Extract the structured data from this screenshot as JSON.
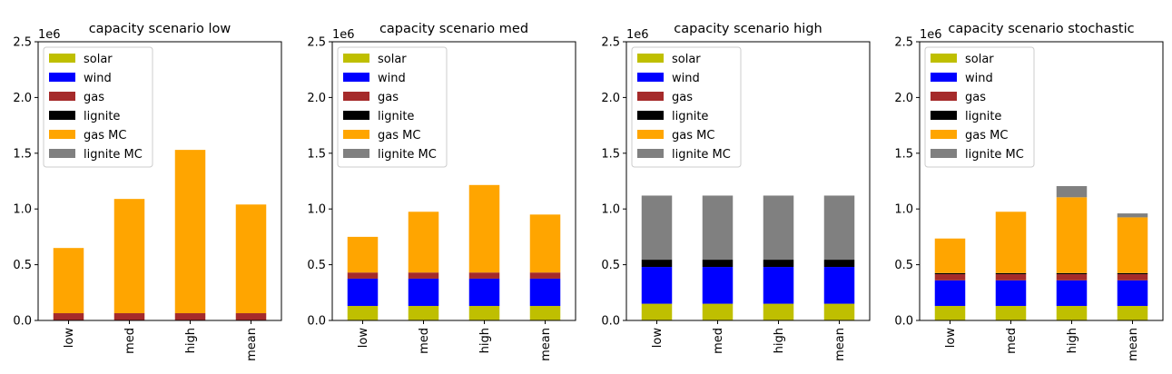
{
  "chart_data": [
    {
      "type": "bar",
      "stacked": true,
      "title": "capacity scenario low",
      "offset_label": "1e6",
      "categories": [
        "low",
        "med",
        "high",
        "mean"
      ],
      "ylim": [
        0,
        2500000
      ],
      "yticks": [
        0,
        500000,
        1000000,
        1500000,
        2000000,
        2500000
      ],
      "ytick_labels": [
        "0.0",
        "0.5",
        "1.0",
        "1.5",
        "2.0",
        "2.5"
      ],
      "legend_placement": "upper-left",
      "series": [
        {
          "name": "solar",
          "color": "#bfbf00",
          "values": [
            0,
            0,
            0,
            0
          ]
        },
        {
          "name": "wind",
          "color": "#0000ff",
          "values": [
            0,
            0,
            0,
            0
          ]
        },
        {
          "name": "gas",
          "color": "#a52a2a",
          "values": [
            65000,
            65000,
            65000,
            65000
          ]
        },
        {
          "name": "lignite",
          "color": "#000000",
          "values": [
            0,
            0,
            0,
            0
          ]
        },
        {
          "name": "gas MC",
          "color": "#ffa500",
          "values": [
            585000,
            1025000,
            1465000,
            975000
          ]
        },
        {
          "name": "lignite MC",
          "color": "#808080",
          "values": [
            0,
            0,
            0,
            0
          ]
        }
      ]
    },
    {
      "type": "bar",
      "stacked": true,
      "title": "capacity scenario med",
      "offset_label": "1e6",
      "categories": [
        "low",
        "med",
        "high",
        "mean"
      ],
      "ylim": [
        0,
        2500000
      ],
      "yticks": [
        0,
        500000,
        1000000,
        1500000,
        2000000,
        2500000
      ],
      "ytick_labels": [
        "0.0",
        "0.5",
        "1.0",
        "1.5",
        "2.0",
        "2.5"
      ],
      "legend_placement": "upper-left",
      "series": [
        {
          "name": "solar",
          "color": "#bfbf00",
          "values": [
            130000,
            130000,
            130000,
            130000
          ]
        },
        {
          "name": "wind",
          "color": "#0000ff",
          "values": [
            245000,
            245000,
            245000,
            245000
          ]
        },
        {
          "name": "gas",
          "color": "#a52a2a",
          "values": [
            55000,
            55000,
            55000,
            55000
          ]
        },
        {
          "name": "lignite",
          "color": "#000000",
          "values": [
            0,
            0,
            0,
            0
          ]
        },
        {
          "name": "gas MC",
          "color": "#ffa500",
          "values": [
            320000,
            545000,
            785000,
            520000
          ]
        },
        {
          "name": "lignite MC",
          "color": "#808080",
          "values": [
            0,
            0,
            0,
            0
          ]
        }
      ]
    },
    {
      "type": "bar",
      "stacked": true,
      "title": "capacity scenario high",
      "offset_label": "1e6",
      "categories": [
        "low",
        "med",
        "high",
        "mean"
      ],
      "ylim": [
        0,
        2500000
      ],
      "yticks": [
        0,
        500000,
        1000000,
        1500000,
        2000000,
        2500000
      ],
      "ytick_labels": [
        "0.0",
        "0.5",
        "1.0",
        "1.5",
        "2.0",
        "2.5"
      ],
      "legend_placement": "upper-left",
      "series": [
        {
          "name": "solar",
          "color": "#bfbf00",
          "values": [
            150000,
            150000,
            150000,
            150000
          ]
        },
        {
          "name": "wind",
          "color": "#0000ff",
          "values": [
            330000,
            330000,
            330000,
            330000
          ]
        },
        {
          "name": "gas",
          "color": "#a52a2a",
          "values": [
            0,
            0,
            0,
            0
          ]
        },
        {
          "name": "lignite",
          "color": "#000000",
          "values": [
            65000,
            65000,
            65000,
            65000
          ]
        },
        {
          "name": "gas MC",
          "color": "#ffa500",
          "values": [
            0,
            0,
            0,
            0
          ]
        },
        {
          "name": "lignite MC",
          "color": "#808080",
          "values": [
            575000,
            575000,
            575000,
            575000
          ]
        }
      ]
    },
    {
      "type": "bar",
      "stacked": true,
      "title": "capacity scenario stochastic",
      "offset_label": "1e6",
      "categories": [
        "low",
        "med",
        "high",
        "mean"
      ],
      "ylim": [
        0,
        2500000
      ],
      "yticks": [
        0,
        500000,
        1000000,
        1500000,
        2000000,
        2500000
      ],
      "ytick_labels": [
        "0.0",
        "0.5",
        "1.0",
        "1.5",
        "2.0",
        "2.5"
      ],
      "legend_placement": "upper-left",
      "series": [
        {
          "name": "solar",
          "color": "#bfbf00",
          "values": [
            130000,
            130000,
            130000,
            130000
          ]
        },
        {
          "name": "wind",
          "color": "#0000ff",
          "values": [
            230000,
            230000,
            230000,
            230000
          ]
        },
        {
          "name": "gas",
          "color": "#a52a2a",
          "values": [
            55000,
            55000,
            55000,
            55000
          ]
        },
        {
          "name": "lignite",
          "color": "#000000",
          "values": [
            10000,
            10000,
            10000,
            10000
          ]
        },
        {
          "name": "gas MC",
          "color": "#ffa500",
          "values": [
            310000,
            550000,
            680000,
            500000
          ]
        },
        {
          "name": "lignite MC",
          "color": "#808080",
          "values": [
            0,
            0,
            100000,
            35000
          ]
        }
      ]
    }
  ]
}
